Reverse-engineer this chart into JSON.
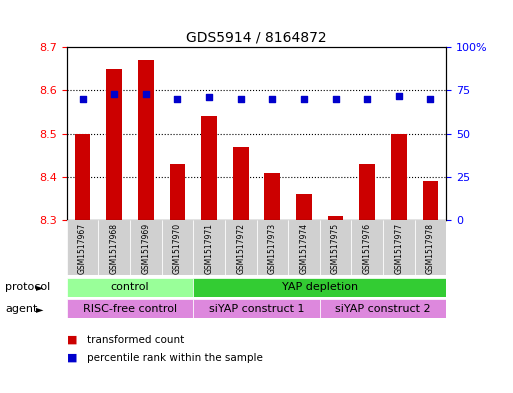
{
  "title": "GDS5914 / 8164872",
  "samples": [
    "GSM1517967",
    "GSM1517968",
    "GSM1517969",
    "GSM1517970",
    "GSM1517971",
    "GSM1517972",
    "GSM1517973",
    "GSM1517974",
    "GSM1517975",
    "GSM1517976",
    "GSM1517977",
    "GSM1517978"
  ],
  "bar_values": [
    8.5,
    8.65,
    8.67,
    8.43,
    8.54,
    8.47,
    8.41,
    8.36,
    8.31,
    8.43,
    8.5,
    8.39
  ],
  "dot_values": [
    70,
    73,
    73,
    70,
    71,
    70,
    70,
    70,
    70,
    70,
    72,
    70
  ],
  "bar_color": "#cc0000",
  "dot_color": "#0000cc",
  "bar_bottom": 8.3,
  "ylim_left": [
    8.3,
    8.7
  ],
  "ylim_right": [
    0,
    100
  ],
  "yticks_left": [
    8.3,
    8.4,
    8.5,
    8.6,
    8.7
  ],
  "yticks_right": [
    0,
    25,
    50,
    75,
    100
  ],
  "ytick_labels_right": [
    "0",
    "25",
    "50",
    "75",
    "100%"
  ],
  "grid_values": [
    8.4,
    8.5,
    8.6
  ],
  "protocol_labels": [
    {
      "text": "control",
      "start": 0,
      "end": 4,
      "color": "#99ff99"
    },
    {
      "text": "YAP depletion",
      "start": 4,
      "end": 12,
      "color": "#33cc33"
    }
  ],
  "agent_labels": [
    {
      "text": "RISC-free control",
      "start": 0,
      "end": 4,
      "color": "#dd88dd"
    },
    {
      "text": "siYAP construct 1",
      "start": 4,
      "end": 8,
      "color": "#dd88dd"
    },
    {
      "text": "siYAP construct 2",
      "start": 8,
      "end": 12,
      "color": "#dd88dd"
    }
  ],
  "protocol_row_label": "protocol",
  "agent_row_label": "agent",
  "legend_items": [
    {
      "label": "transformed count",
      "color": "#cc0000"
    },
    {
      "label": "percentile rank within the sample",
      "color": "#0000cc"
    }
  ],
  "bar_width": 0.5,
  "plot_bg": "#ffffff",
  "sample_box_color": "#d0d0d0"
}
